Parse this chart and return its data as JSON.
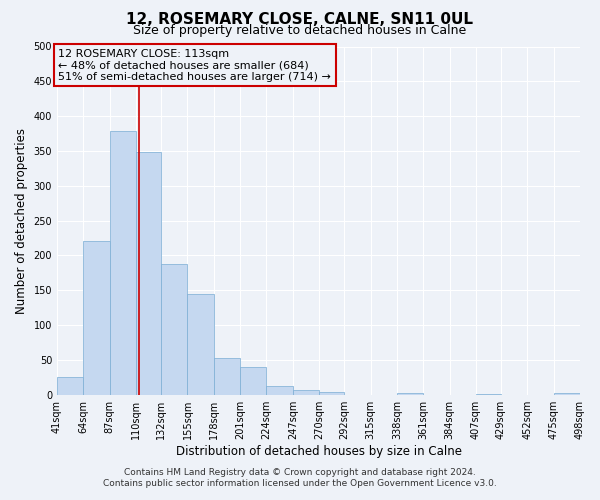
{
  "title": "12, ROSEMARY CLOSE, CALNE, SN11 0UL",
  "subtitle": "Size of property relative to detached houses in Calne",
  "xlabel": "Distribution of detached houses by size in Calne",
  "ylabel": "Number of detached properties",
  "bin_edges": [
    41,
    64,
    87,
    110,
    132,
    155,
    178,
    201,
    224,
    247,
    270,
    292,
    315,
    338,
    361,
    384,
    407,
    429,
    452,
    475,
    498
  ],
  "bar_heights": [
    25,
    220,
    378,
    348,
    188,
    144,
    53,
    40,
    12,
    7,
    4,
    0,
    0,
    2,
    0,
    0,
    1,
    0,
    0,
    2
  ],
  "bar_color": "#c5d8f0",
  "bar_edgecolor": "#7aadd4",
  "property_value": 113,
  "vline_color": "#cc0000",
  "annotation_line1": "12 ROSEMARY CLOSE: 113sqm",
  "annotation_line2": "← 48% of detached houses are smaller (684)",
  "annotation_line3": "51% of semi-detached houses are larger (714) →",
  "annotation_box_edgecolor": "#cc0000",
  "ylim": [
    0,
    500
  ],
  "yticks": [
    0,
    50,
    100,
    150,
    200,
    250,
    300,
    350,
    400,
    450,
    500
  ],
  "tick_labels": [
    "41sqm",
    "64sqm",
    "87sqm",
    "110sqm",
    "132sqm",
    "155sqm",
    "178sqm",
    "201sqm",
    "224sqm",
    "247sqm",
    "270sqm",
    "292sqm",
    "315sqm",
    "338sqm",
    "361sqm",
    "384sqm",
    "407sqm",
    "429sqm",
    "452sqm",
    "475sqm",
    "498sqm"
  ],
  "footer_line1": "Contains HM Land Registry data © Crown copyright and database right 2024.",
  "footer_line2": "Contains public sector information licensed under the Open Government Licence v3.0.",
  "background_color": "#eef2f8",
  "grid_color": "#ffffff",
  "title_fontsize": 11,
  "subtitle_fontsize": 9,
  "axis_label_fontsize": 8.5,
  "tick_fontsize": 7,
  "annotation_fontsize": 8,
  "footer_fontsize": 6.5
}
